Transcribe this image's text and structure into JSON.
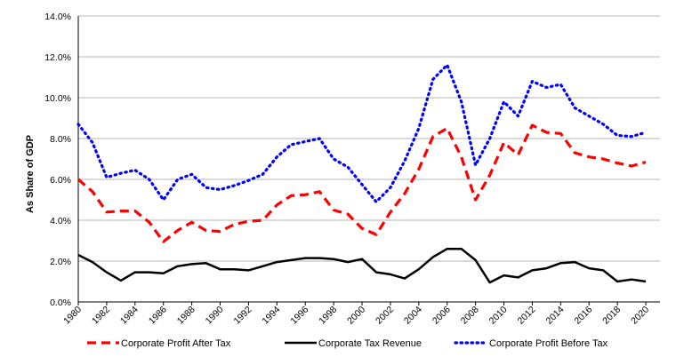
{
  "chart_data": {
    "type": "line",
    "ylabel": "As Share of GDP",
    "xlabel": "",
    "ylim": [
      0,
      14
    ],
    "yticks": [
      0,
      2,
      4,
      6,
      8,
      10,
      12,
      14
    ],
    "ytick_labels": [
      "0.0%",
      "2.0%",
      "4.0%",
      "6.0%",
      "8.0%",
      "10.0%",
      "12.0%",
      "14.0%"
    ],
    "xlim": [
      1980,
      2021
    ],
    "xticks": [
      1980,
      1982,
      1984,
      1986,
      1988,
      1990,
      1992,
      1994,
      1996,
      1998,
      2000,
      2002,
      2004,
      2006,
      2008,
      2010,
      2012,
      2014,
      2016,
      2018,
      2020
    ],
    "xtick_labels": [
      "1980",
      "1982",
      "1984",
      "1986",
      "1988",
      "1990",
      "1992",
      "1994",
      "1996",
      "1998",
      "2000",
      "2002",
      "2004",
      "2006",
      "2008",
      "2010",
      "2012",
      "2014",
      "2016",
      "2018",
      "2020"
    ],
    "grid": "horizontal",
    "legend_position": "bottom",
    "x": [
      1980,
      1981,
      1982,
      1983,
      1984,
      1985,
      1986,
      1987,
      1988,
      1989,
      1990,
      1991,
      1992,
      1993,
      1994,
      1995,
      1996,
      1997,
      1998,
      1999,
      2000,
      2001,
      2002,
      2003,
      2004,
      2005,
      2006,
      2007,
      2008,
      2009,
      2010,
      2011,
      2012,
      2013,
      2014,
      2015,
      2016,
      2017,
      2018,
      2019,
      2020
    ],
    "series": [
      {
        "name": "Corporate Profit After Tax",
        "color": "#ff0000",
        "dash": "dashed",
        "values": [
          6.0,
          5.4,
          4.4,
          4.45,
          4.45,
          3.9,
          2.95,
          3.5,
          3.9,
          3.5,
          3.45,
          3.8,
          3.95,
          4.0,
          4.75,
          5.2,
          5.25,
          5.4,
          4.5,
          4.3,
          3.6,
          3.3,
          4.4,
          5.3,
          6.5,
          8.1,
          8.5,
          7.1,
          5.0,
          6.2,
          7.8,
          7.2,
          8.65,
          8.3,
          8.25,
          7.3,
          7.1,
          7.0,
          6.8,
          6.65,
          6.85
        ]
      },
      {
        "name": "Corporate Tax Revenue",
        "color": "#000000",
        "dash": "solid",
        "values": [
          2.3,
          1.95,
          1.45,
          1.05,
          1.45,
          1.45,
          1.4,
          1.75,
          1.85,
          1.9,
          1.6,
          1.6,
          1.55,
          1.75,
          1.95,
          2.05,
          2.15,
          2.15,
          2.1,
          1.95,
          2.1,
          1.45,
          1.35,
          1.15,
          1.6,
          2.2,
          2.6,
          2.6,
          2.05,
          0.95,
          1.3,
          1.2,
          1.55,
          1.65,
          1.9,
          1.95,
          1.65,
          1.55,
          1.0,
          1.1,
          1.0
        ]
      },
      {
        "name": "Corporate Profit Before Tax",
        "color": "#0000ff",
        "dash": "dotted",
        "values": [
          8.7,
          7.8,
          6.1,
          6.3,
          6.45,
          6.0,
          5.0,
          6.0,
          6.25,
          5.6,
          5.5,
          5.7,
          5.95,
          6.25,
          7.1,
          7.7,
          7.85,
          8.0,
          7.0,
          6.6,
          5.75,
          4.9,
          5.6,
          6.9,
          8.5,
          10.9,
          11.6,
          9.8,
          6.7,
          8.0,
          9.8,
          9.1,
          10.8,
          10.5,
          10.65,
          9.5,
          9.1,
          8.7,
          8.15,
          8.1,
          8.3
        ]
      }
    ]
  }
}
